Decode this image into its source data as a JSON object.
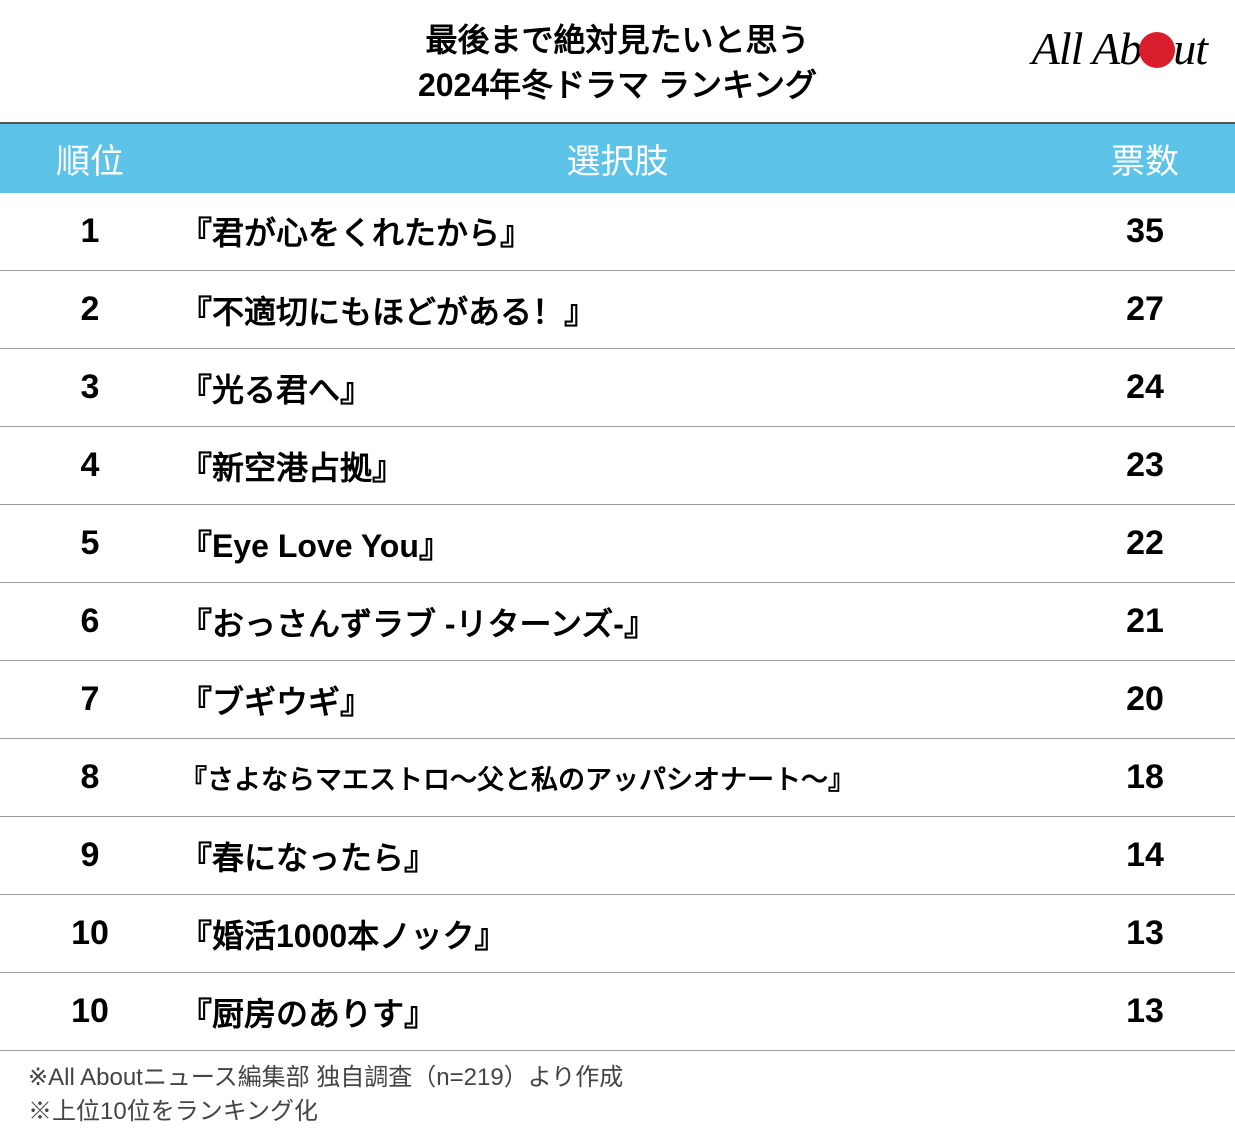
{
  "header": {
    "title_line1": "最後まで絶対見たいと思う",
    "title_line2": "2024年冬ドラマ ランキング",
    "logo_pre": "All Ab",
    "logo_post": "ut",
    "logo_dot_color": "#d81e2c"
  },
  "table": {
    "type": "table",
    "header_bg_color": "#5ec3e8",
    "header_text_color": "#ffffff",
    "row_border_color": "#9a9a9a",
    "columns": {
      "rank": "順位",
      "choice": "選択肢",
      "votes": "票数"
    },
    "rows": [
      {
        "rank": "1",
        "choice": "『君が心をくれたから』",
        "votes": "35",
        "small": false
      },
      {
        "rank": "2",
        "choice": "『不適切にもほどがある！』",
        "votes": "27",
        "small": false
      },
      {
        "rank": "3",
        "choice": "『光る君へ』",
        "votes": "24",
        "small": false
      },
      {
        "rank": "4",
        "choice": "『新空港占拠』",
        "votes": "23",
        "small": false
      },
      {
        "rank": "5",
        "choice": "『Eye Love You』",
        "votes": "22",
        "small": false
      },
      {
        "rank": "6",
        "choice": "『おっさんずラブ -リターンズ-』",
        "votes": "21",
        "small": false
      },
      {
        "rank": "7",
        "choice": "『ブギウギ』",
        "votes": "20",
        "small": false
      },
      {
        "rank": "8",
        "choice": "『さよならマエストロ～父と私のアッパシオナート～』",
        "votes": "18",
        "small": true
      },
      {
        "rank": "9",
        "choice": "『春になったら』",
        "votes": "14",
        "small": false
      },
      {
        "rank": "10",
        "choice": "『婚活1000本ノック』",
        "votes": "13",
        "small": false
      },
      {
        "rank": "10",
        "choice": "『厨房のありす』",
        "votes": "13",
        "small": false
      }
    ]
  },
  "footer": {
    "line1": "※All Aboutニュース編集部 独自調査（n=219）より作成",
    "line2": "※上位10位をランキング化"
  },
  "styles": {
    "title_fontsize": 32,
    "header_fontsize": 34,
    "cell_fontsize": 34,
    "cell_small_fontsize": 27,
    "footer_fontsize": 24,
    "background_color": "#ffffff",
    "text_color": "#000000",
    "footer_text_color": "#444444"
  }
}
